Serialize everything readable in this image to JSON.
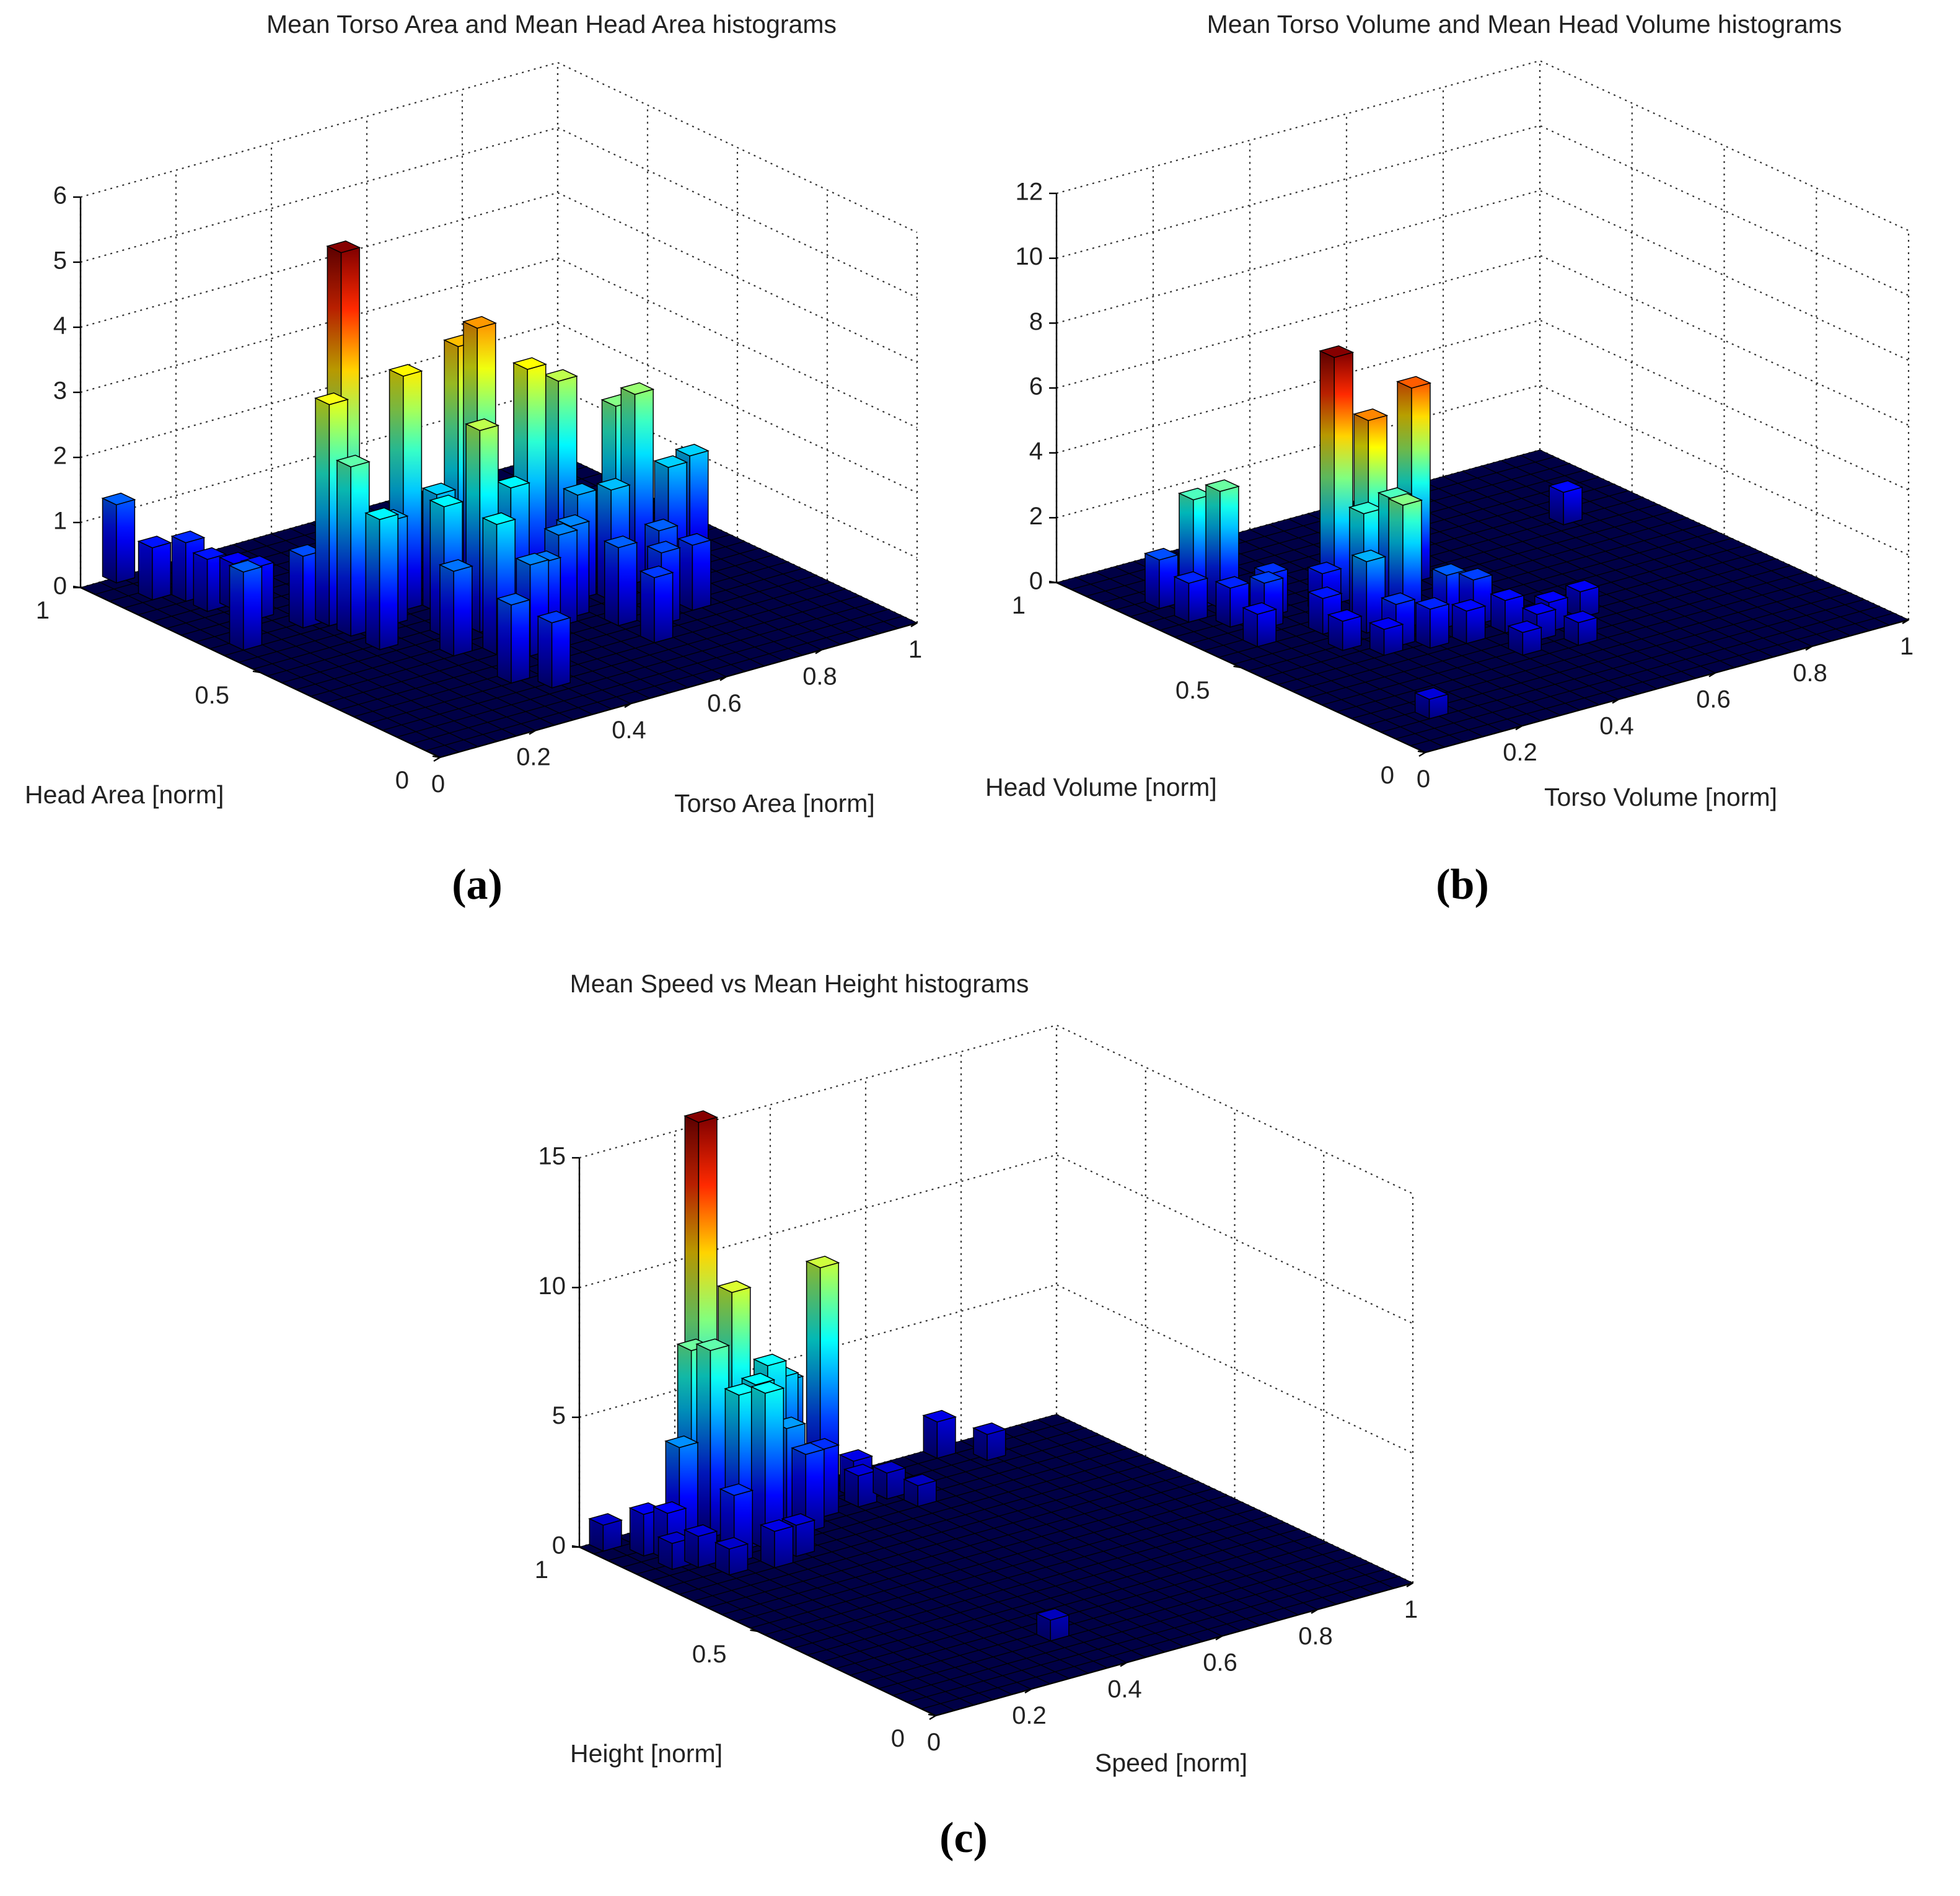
{
  "chart_data": [
    {
      "type": "bar3d",
      "panel": "a",
      "caption": "(a)",
      "title": "Mean Torso Area and Mean Head Area histograms",
      "xlabel": "Torso Area [norm]",
      "ylabel": "Head Area [norm]",
      "xticks": [
        "0",
        "0.2",
        "0.4",
        "0.6",
        "0.8",
        "1"
      ],
      "yticks": [
        "0",
        "0.5",
        "1"
      ],
      "zticks": [
        "0",
        "1",
        "2",
        "3",
        "4",
        "5",
        "6"
      ],
      "xlim": [
        0,
        1
      ],
      "ylim": [
        0,
        1
      ],
      "zlim": [
        0,
        6
      ],
      "bins": 25,
      "bars": [
        {
          "x": 0.06,
          "y": 0.98,
          "h": 1.2
        },
        {
          "x": 0.06,
          "y": 0.88,
          "h": 0.8
        },
        {
          "x": 0.1,
          "y": 0.84,
          "h": 0.9
        },
        {
          "x": 0.1,
          "y": 0.78,
          "h": 0.8
        },
        {
          "x": 0.14,
          "y": 0.76,
          "h": 0.7
        },
        {
          "x": 0.14,
          "y": 0.7,
          "h": 0.8
        },
        {
          "x": 0.04,
          "y": 0.6,
          "h": 1.2
        },
        {
          "x": 0.18,
          "y": 0.62,
          "h": 1.1
        },
        {
          "x": 0.22,
          "y": 0.6,
          "h": 3.4
        },
        {
          "x": 0.26,
          "y": 0.62,
          "h": 5.6
        },
        {
          "x": 0.22,
          "y": 0.54,
          "h": 2.6
        },
        {
          "x": 0.22,
          "y": 0.46,
          "h": 2.0
        },
        {
          "x": 0.3,
          "y": 0.54,
          "h": 1.6
        },
        {
          "x": 0.36,
          "y": 0.58,
          "h": 3.6
        },
        {
          "x": 0.4,
          "y": 0.54,
          "h": 1.8
        },
        {
          "x": 0.46,
          "y": 0.56,
          "h": 3.9
        },
        {
          "x": 0.5,
          "y": 0.56,
          "h": 4.1
        },
        {
          "x": 0.34,
          "y": 0.44,
          "h": 2.0
        },
        {
          "x": 0.4,
          "y": 0.42,
          "h": 3.1
        },
        {
          "x": 0.48,
          "y": 0.44,
          "h": 2.0
        },
        {
          "x": 0.56,
          "y": 0.5,
          "h": 3.5
        },
        {
          "x": 0.3,
          "y": 0.36,
          "h": 1.3
        },
        {
          "x": 0.36,
          "y": 0.32,
          "h": 2.0
        },
        {
          "x": 0.4,
          "y": 0.28,
          "h": 1.4
        },
        {
          "x": 0.44,
          "y": 0.3,
          "h": 1.3
        },
        {
          "x": 0.52,
          "y": 0.36,
          "h": 1.4
        },
        {
          "x": 0.56,
          "y": 0.38,
          "h": 1.4
        },
        {
          "x": 0.64,
          "y": 0.52,
          "h": 3.1
        },
        {
          "x": 0.62,
          "y": 0.44,
          "h": 1.6
        },
        {
          "x": 0.66,
          "y": 0.4,
          "h": 1.7
        },
        {
          "x": 0.7,
          "y": 0.44,
          "h": 2.8
        },
        {
          "x": 0.74,
          "y": 0.44,
          "h": 2.9
        },
        {
          "x": 0.7,
          "y": 0.32,
          "h": 1.2
        },
        {
          "x": 0.78,
          "y": 0.4,
          "h": 1.8
        },
        {
          "x": 0.84,
          "y": 0.42,
          "h": 1.8
        },
        {
          "x": 0.3,
          "y": 0.2,
          "h": 1.2
        },
        {
          "x": 0.34,
          "y": 0.14,
          "h": 1.0
        },
        {
          "x": 0.6,
          "y": 0.3,
          "h": 1.2
        },
        {
          "x": 0.66,
          "y": 0.26,
          "h": 1.1
        },
        {
          "x": 0.74,
          "y": 0.28,
          "h": 1.0
        },
        {
          "x": 0.6,
          "y": 0.2,
          "h": 1.0
        }
      ]
    },
    {
      "type": "bar3d",
      "panel": "b",
      "caption": "(b)",
      "title": "Mean Torso Volume and Mean Head Volume histograms",
      "xlabel": "Torso Volume [norm]",
      "ylabel": "Head Volume [norm]",
      "xticks": [
        "0",
        "0.2",
        "0.4",
        "0.6",
        "0.8",
        "1"
      ],
      "yticks": [
        "0",
        "0.5",
        "1"
      ],
      "zticks": [
        "0",
        "2",
        "4",
        "6",
        "8",
        "10",
        "12"
      ],
      "xlim": [
        0,
        1
      ],
      "ylim": [
        0,
        1
      ],
      "zlim": [
        0,
        12
      ],
      "bins": 25,
      "bars": [
        {
          "x": 0.06,
          "y": 0.8,
          "h": 1.5
        },
        {
          "x": 0.06,
          "y": 0.72,
          "h": 1.2
        },
        {
          "x": 0.1,
          "y": 0.76,
          "h": 3.4
        },
        {
          "x": 0.14,
          "y": 0.74,
          "h": 3.6
        },
        {
          "x": 0.1,
          "y": 0.66,
          "h": 1.2
        },
        {
          "x": 0.14,
          "y": 0.62,
          "h": 1.4
        },
        {
          "x": 0.18,
          "y": 0.66,
          "h": 1.3
        },
        {
          "x": 0.08,
          "y": 0.56,
          "h": 1.0
        },
        {
          "x": 0.2,
          "y": 0.54,
          "h": 1.1
        },
        {
          "x": 0.26,
          "y": 0.62,
          "h": 1.2
        },
        {
          "x": 0.3,
          "y": 0.64,
          "h": 7.6
        },
        {
          "x": 0.34,
          "y": 0.6,
          "h": 5.7
        },
        {
          "x": 0.3,
          "y": 0.56,
          "h": 3.2
        },
        {
          "x": 0.36,
          "y": 0.56,
          "h": 3.4
        },
        {
          "x": 0.4,
          "y": 0.6,
          "h": 2.6
        },
        {
          "x": 0.46,
          "y": 0.64,
          "h": 6.0
        },
        {
          "x": 0.26,
          "y": 0.5,
          "h": 2.2
        },
        {
          "x": 0.32,
          "y": 0.48,
          "h": 3.8
        },
        {
          "x": 0.38,
          "y": 0.44,
          "h": 1.6
        },
        {
          "x": 0.26,
          "y": 0.42,
          "h": 1.3
        },
        {
          "x": 0.3,
          "y": 0.38,
          "h": 1.2
        },
        {
          "x": 0.36,
          "y": 0.36,
          "h": 1.0
        },
        {
          "x": 0.42,
          "y": 0.42,
          "h": 1.4
        },
        {
          "x": 0.44,
          "y": 0.36,
          "h": 1.0
        },
        {
          "x": 0.46,
          "y": 0.3,
          "h": 0.8
        },
        {
          "x": 0.4,
          "y": 0.26,
          "h": 0.7
        },
        {
          "x": 0.5,
          "y": 0.32,
          "h": 0.9
        },
        {
          "x": 0.22,
          "y": 0.4,
          "h": 0.8
        },
        {
          "x": 0.18,
          "y": 0.46,
          "h": 0.9
        },
        {
          "x": 0.5,
          "y": 0.24,
          "h": 0.7
        },
        {
          "x": 0.1,
          "y": 0.12,
          "h": 0.6
        },
        {
          "x": 0.58,
          "y": 0.34,
          "h": 0.8
        },
        {
          "x": 0.82,
          "y": 0.7,
          "h": 1.0
        }
      ]
    },
    {
      "type": "bar3d",
      "panel": "c",
      "caption": "(c)",
      "title": "Mean Speed vs Mean Height histograms",
      "xlabel": "Speed [norm]",
      "ylabel": "Height [norm]",
      "xticks": [
        "0",
        "0.2",
        "0.4",
        "0.6",
        "0.8",
        "1"
      ],
      "yticks": [
        "0",
        "0.5",
        "1"
      ],
      "zticks": [
        "0",
        "5",
        "10",
        "15"
      ],
      "xlim": [
        0,
        1
      ],
      "ylim": [
        0,
        1
      ],
      "zlim": [
        0,
        15
      ],
      "bins": 25,
      "bars": [
        {
          "x": 0.02,
          "y": 0.96,
          "h": 1.0
        },
        {
          "x": 0.06,
          "y": 0.9,
          "h": 1.6
        },
        {
          "x": 0.08,
          "y": 0.86,
          "h": 1.8
        },
        {
          "x": 0.06,
          "y": 0.82,
          "h": 1.0
        },
        {
          "x": 0.1,
          "y": 0.8,
          "h": 1.2
        },
        {
          "x": 0.12,
          "y": 0.88,
          "h": 4.0
        },
        {
          "x": 0.16,
          "y": 0.9,
          "h": 7.4
        },
        {
          "x": 0.2,
          "y": 0.9,
          "h": 7.2
        },
        {
          "x": 0.22,
          "y": 0.96,
          "h": 15.5
        },
        {
          "x": 0.26,
          "y": 0.92,
          "h": 9.0
        },
        {
          "x": 0.28,
          "y": 0.88,
          "h": 5.6
        },
        {
          "x": 0.32,
          "y": 0.9,
          "h": 6.0
        },
        {
          "x": 0.36,
          "y": 0.92,
          "h": 5.2
        },
        {
          "x": 0.4,
          "y": 0.96,
          "h": 4.6
        },
        {
          "x": 0.2,
          "y": 0.82,
          "h": 6.0
        },
        {
          "x": 0.24,
          "y": 0.8,
          "h": 6.0
        },
        {
          "x": 0.3,
          "y": 0.82,
          "h": 4.2
        },
        {
          "x": 0.34,
          "y": 0.82,
          "h": 3.0
        },
        {
          "x": 0.46,
          "y": 0.94,
          "h": 8.8
        },
        {
          "x": 0.4,
          "y": 0.86,
          "h": 2.6
        },
        {
          "x": 0.16,
          "y": 0.78,
          "h": 2.6
        },
        {
          "x": 0.2,
          "y": 0.72,
          "h": 1.4
        },
        {
          "x": 0.26,
          "y": 0.74,
          "h": 1.2
        },
        {
          "x": 0.12,
          "y": 0.74,
          "h": 1.0
        },
        {
          "x": 0.48,
          "y": 0.86,
          "h": 1.2
        },
        {
          "x": 0.5,
          "y": 0.9,
          "h": 1.4
        },
        {
          "x": 0.54,
          "y": 0.86,
          "h": 1.0
        },
        {
          "x": 0.56,
          "y": 0.8,
          "h": 0.8
        },
        {
          "x": 0.72,
          "y": 0.96,
          "h": 1.4
        },
        {
          "x": 0.78,
          "y": 0.9,
          "h": 1.0
        },
        {
          "x": 0.36,
          "y": 0.16,
          "h": 0.8
        }
      ]
    }
  ]
}
